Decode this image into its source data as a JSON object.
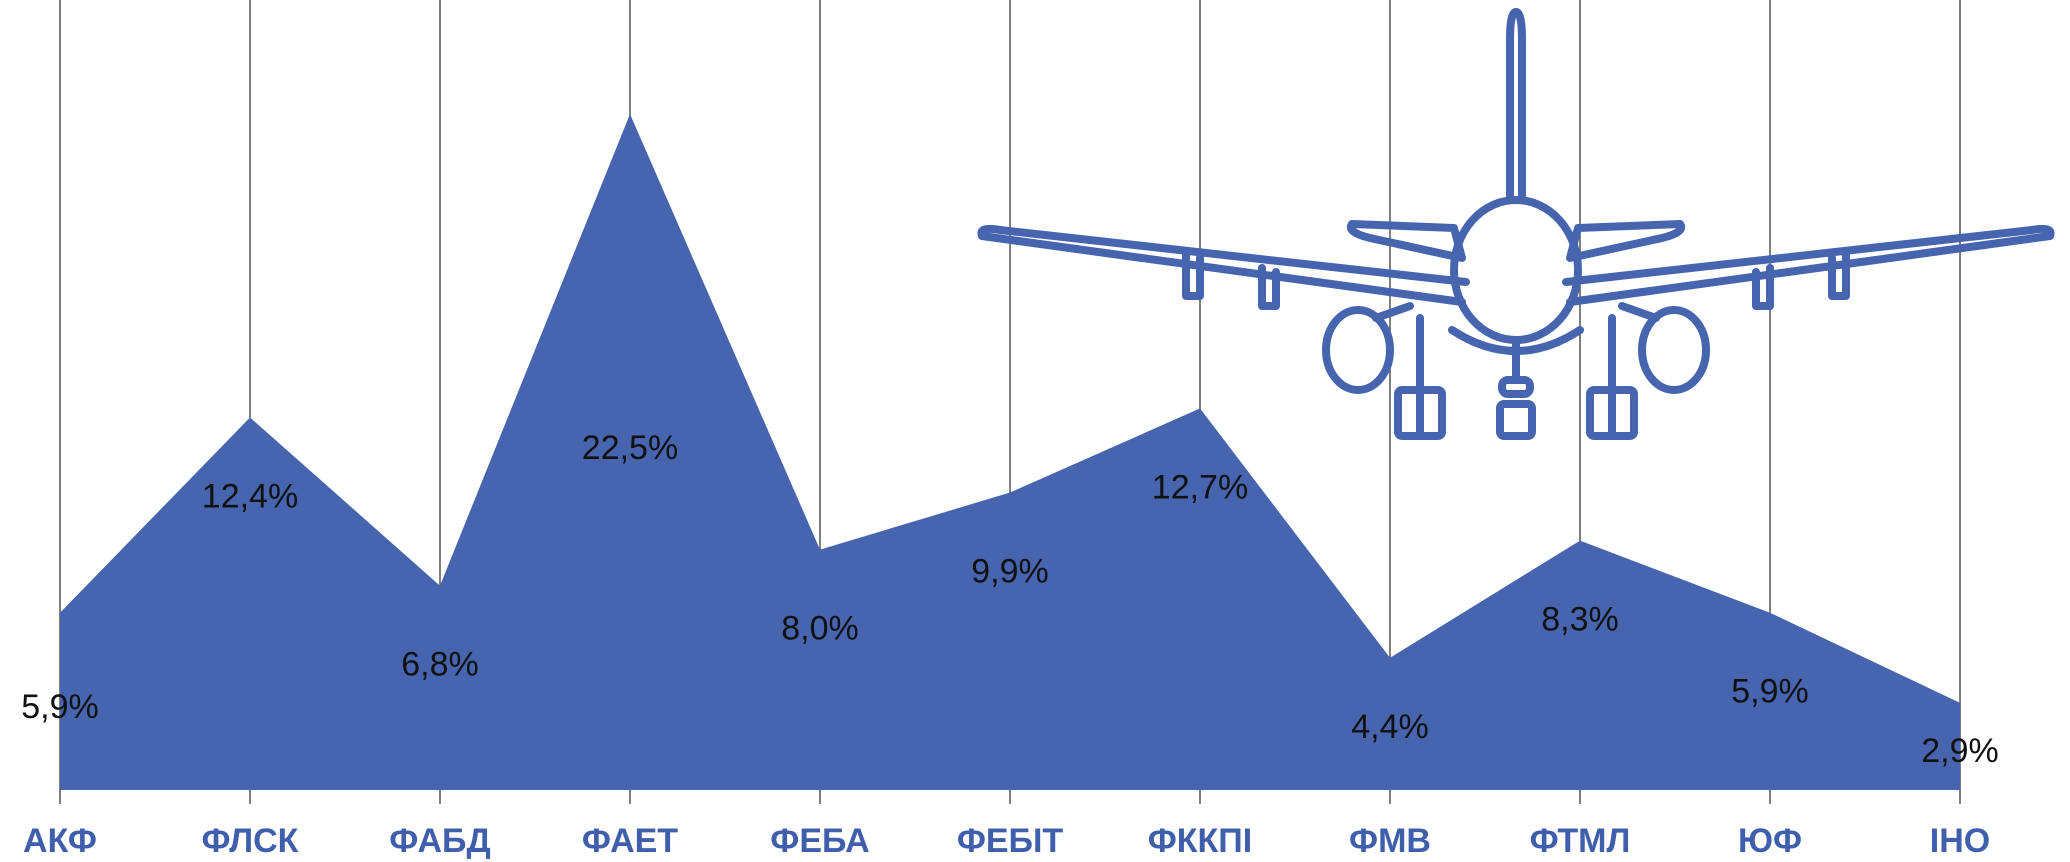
{
  "chart_data": {
    "type": "area",
    "categories": [
      "АКФ",
      "ФЛСК",
      "ФАБД",
      "ФАЕТ",
      "ФЕБА",
      "ФЕБІТ",
      "ФККПІ",
      "ФМВ",
      "ФТМЛ",
      "ЮФ",
      "ІНО"
    ],
    "values": [
      5.9,
      12.4,
      6.8,
      22.5,
      8.0,
      9.9,
      12.7,
      4.4,
      8.3,
      5.9,
      2.9
    ],
    "value_labels": [
      "5,9%",
      "12,4%",
      "6,8%",
      "22,5%",
      "8,0%",
      "9,9%",
      "12,7%",
      "4,4%",
      "8,3%",
      "5,9%",
      "2,9%"
    ],
    "title": "",
    "xlabel": "",
    "ylabel": "",
    "ylim": [
      0,
      22.5
    ],
    "grid": "vertical",
    "legend": "none"
  },
  "colors": {
    "area_fill": "#4765AE",
    "category_text": "#3F5FAD",
    "airplane_stroke": "#4765AE",
    "gridline": "#555555"
  },
  "decoration": {
    "icon": "airplane-icon"
  }
}
